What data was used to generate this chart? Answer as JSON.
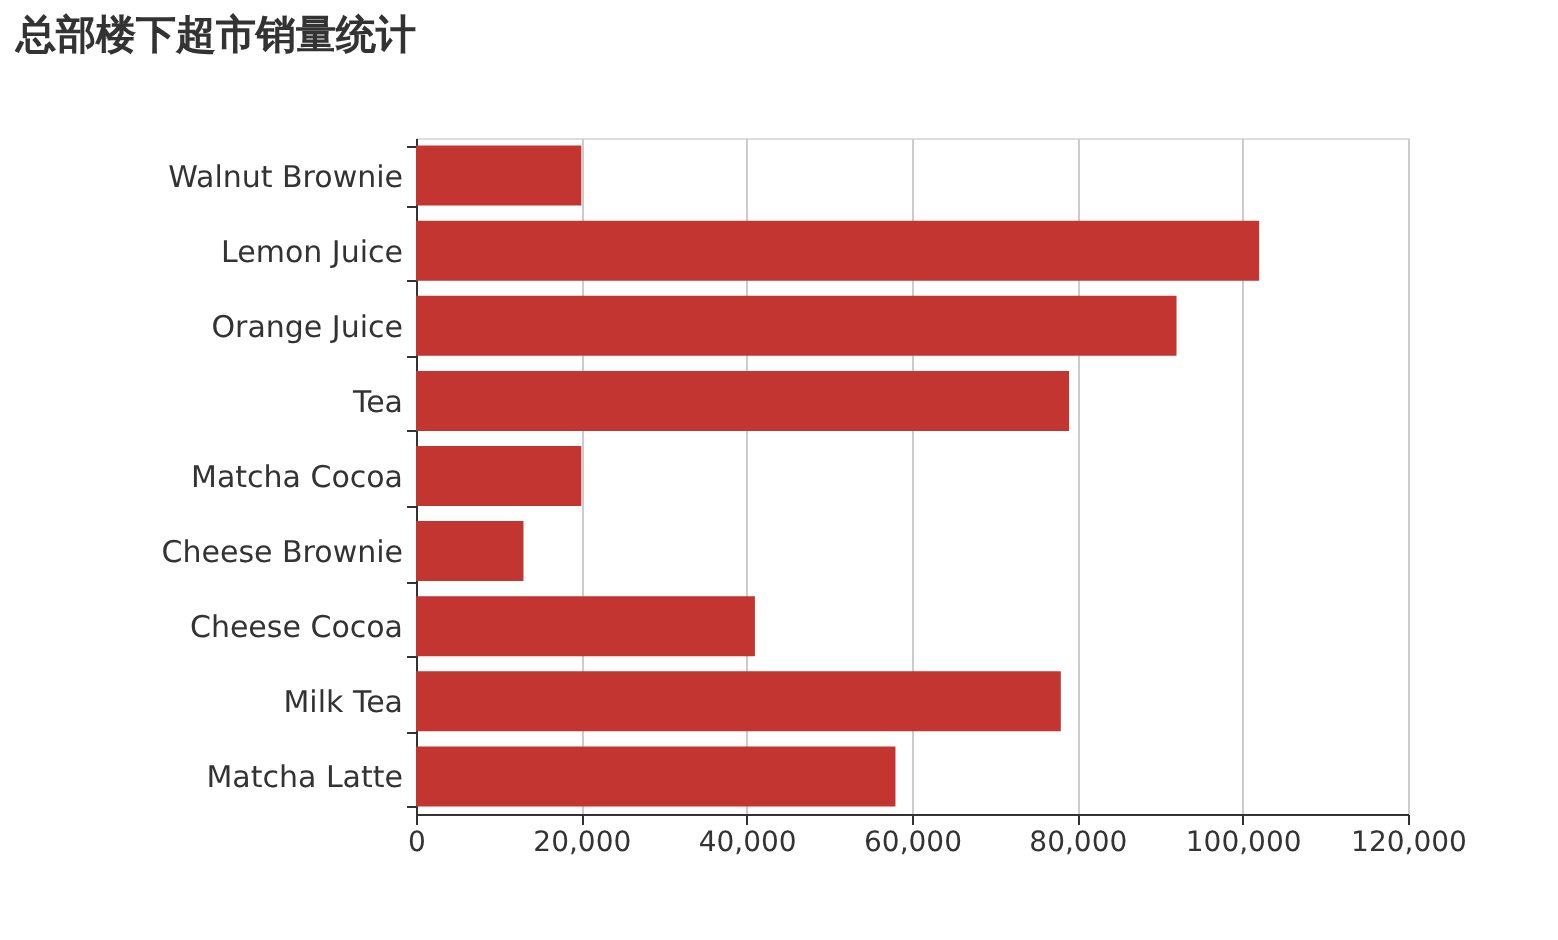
{
  "chart_data": {
    "type": "bar",
    "orientation": "horizontal",
    "title": "总部楼下超市销量统计",
    "categories": [
      "Walnut Brownie",
      "Lemon Juice",
      "Orange Juice",
      "Tea",
      "Matcha Cocoa",
      "Cheese Brownie",
      "Cheese Cocoa",
      "Milk Tea",
      "Matcha Latte"
    ],
    "values": [
      20000,
      102000,
      92000,
      79000,
      20000,
      13000,
      41000,
      78000,
      58000
    ],
    "color": "#c23531",
    "xlim": [
      0,
      120000
    ],
    "xticks": [
      0,
      {
        "value": 20000,
        "label": "20,000"
      },
      {
        "value": 40000,
        "label": "40,000"
      },
      {
        "value": 60000,
        "label": "60,000"
      },
      {
        "value": 80000,
        "label": "80,000"
      },
      {
        "value": 100000,
        "label": "100,000"
      },
      {
        "value": 120000,
        "label": "120,000"
      }
    ],
    "grid": "x"
  }
}
